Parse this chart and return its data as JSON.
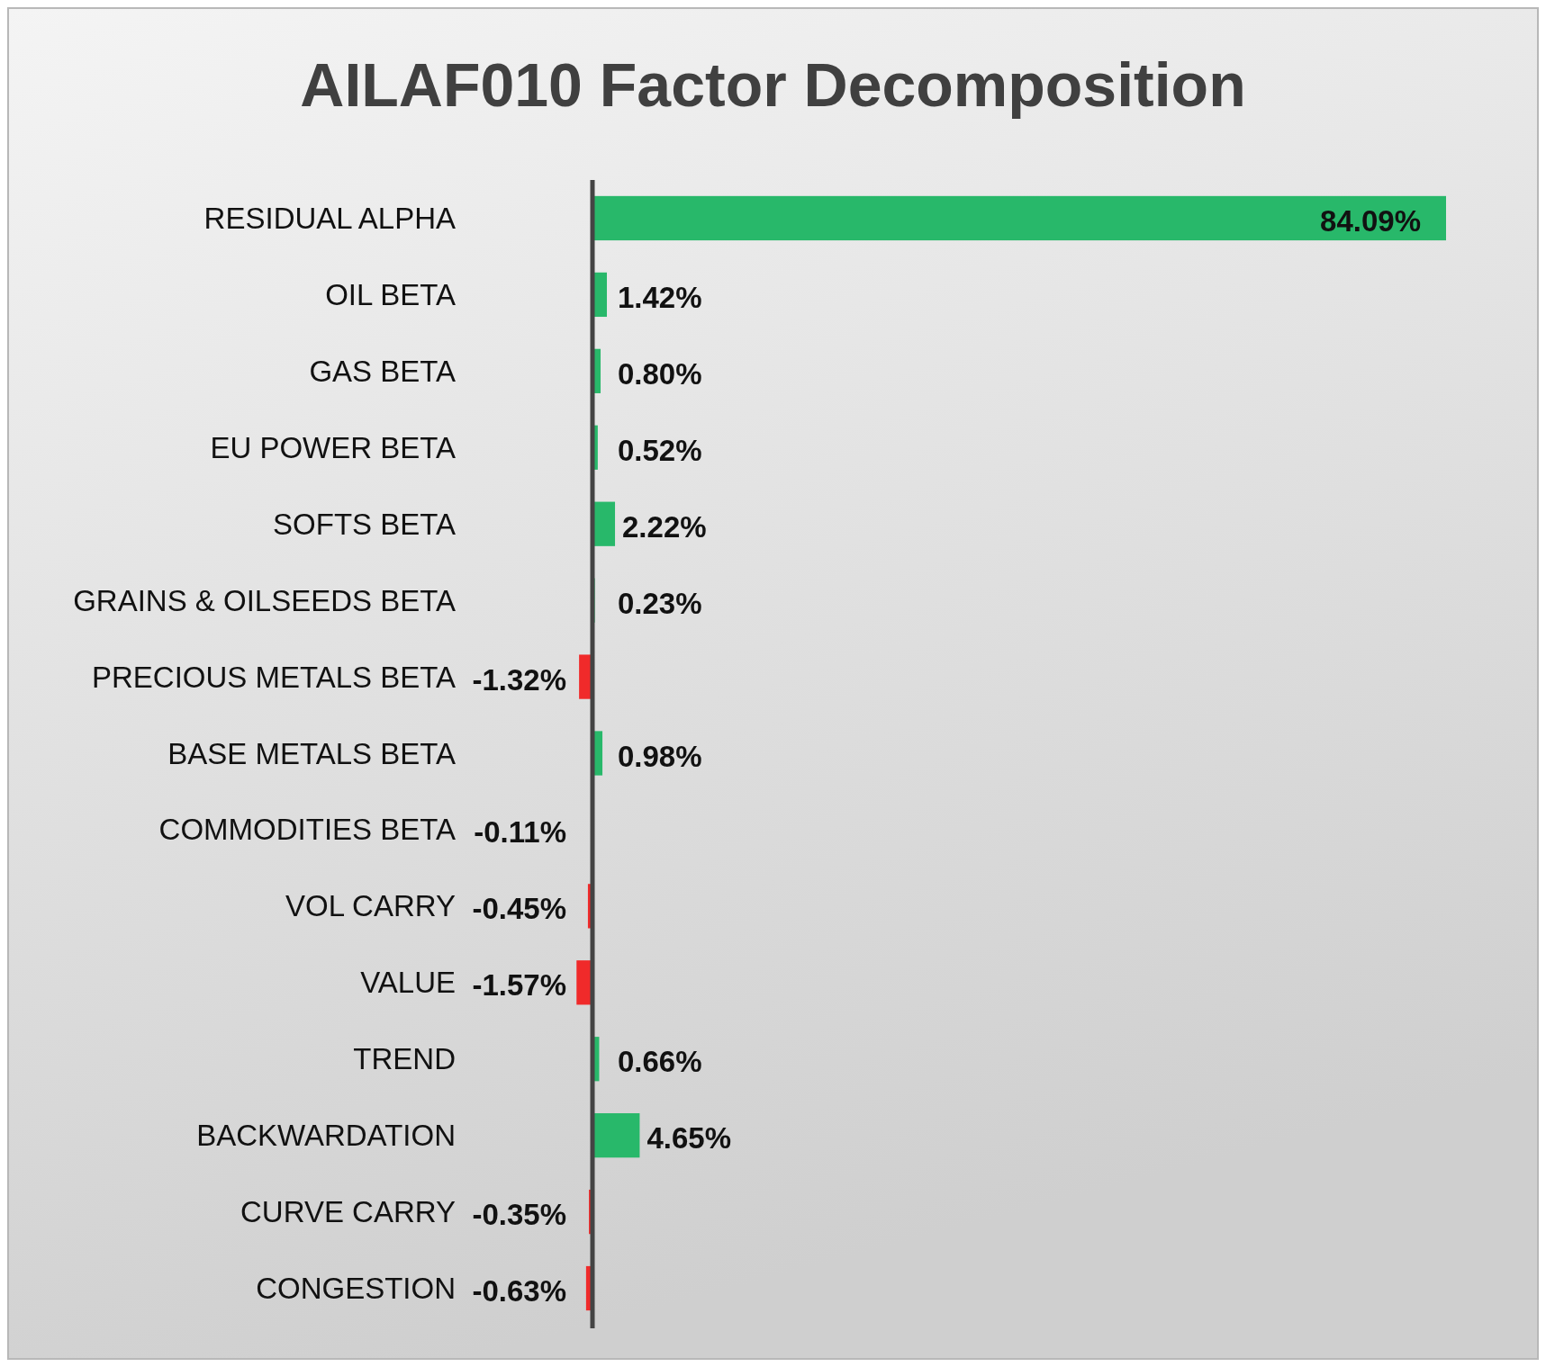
{
  "chart_data": {
    "type": "bar",
    "orientation": "horizontal",
    "title": "AILAF010 Factor Decomposition",
    "categories": [
      "RESIDUAL ALPHA",
      "OIL BETA",
      "GAS BETA",
      "EU POWER BETA",
      "SOFTS BETA",
      "GRAINS & OILSEEDS BETA",
      "PRECIOUS METALS BETA",
      "BASE METALS BETA",
      "COMMODITIES BETA",
      "VOL CARRY",
      "VALUE",
      "TREND",
      "BACKWARDATION",
      "CURVE CARRY",
      "CONGESTION"
    ],
    "values": [
      84.09,
      1.42,
      0.8,
      0.52,
      2.22,
      0.23,
      -1.32,
      0.98,
      -0.11,
      -0.45,
      -1.57,
      0.66,
      4.65,
      -0.35,
      -0.63
    ],
    "colors": [
      "#28b86a",
      "#28b86a",
      "#28b86a",
      "#28b86a",
      "#28b86a",
      "#28b86a",
      "#f02a2a",
      "#28b86a",
      "#f02a2a",
      "#f02a2a",
      "#f02a2a",
      "#28b86a",
      "#28b86a",
      "#f02a2a",
      "#f02a2a"
    ],
    "value_labels": [
      "84.09%",
      "1.42%",
      "0.80%",
      "0.52%",
      "2.22%",
      "0.23%",
      "-1.32%",
      "0.98%",
      "-0.11%",
      "-0.45%",
      "-1.57%",
      "0.66%",
      "4.65%",
      "-0.35%",
      "-0.63%"
    ]
  }
}
